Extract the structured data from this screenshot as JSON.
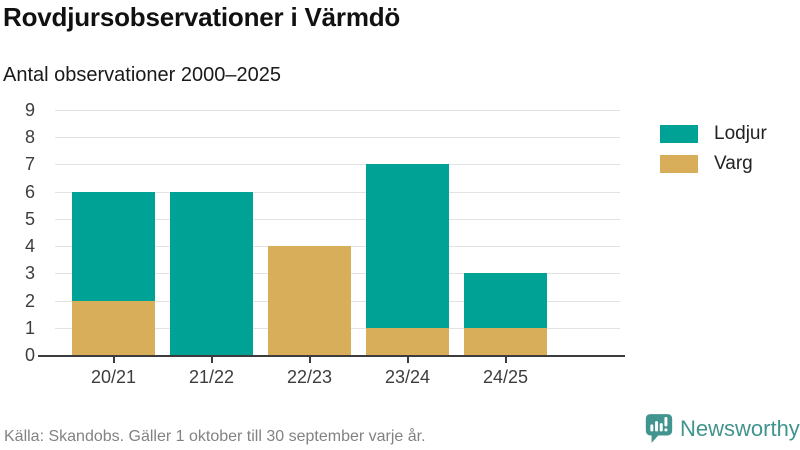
{
  "header": {
    "title": "Rovdjursobservationer i Värmdö",
    "subtitle": "Antal observationer 2000–2025"
  },
  "chart_data": {
    "type": "bar",
    "stacked": true,
    "title": "Rovdjursobservationer i Värmdö",
    "subtitle": "Antal observationer 2000–2025",
    "xlabel": "",
    "ylabel": "",
    "categories": [
      "20/21",
      "21/22",
      "22/23",
      "23/24",
      "24/25"
    ],
    "series": [
      {
        "name": "Lodjur",
        "color": "#00a295",
        "values": [
          4,
          6,
          0,
          6,
          2
        ]
      },
      {
        "name": "Varg",
        "color": "#d9ae5a",
        "values": [
          2,
          0,
          4,
          1,
          1
        ]
      }
    ],
    "stack_bottom_to_top": [
      "Varg",
      "Lodjur"
    ],
    "totals": [
      6,
      6,
      4,
      7,
      3
    ],
    "yticks": [
      0,
      1,
      2,
      3,
      4,
      5,
      6,
      7,
      8,
      9
    ],
    "ylim": [
      0,
      9
    ],
    "grid": true,
    "legend_position": "right"
  },
  "footer": {
    "source": "Källa: Skandobs. Gäller 1 oktober till 30 september varje år.",
    "brand": "Newsworthy"
  },
  "colors": {
    "lodjur": "#00a295",
    "varg": "#d9ae5a",
    "brand_teal": "#42948e",
    "axis": "#3c3c3c",
    "gridline": "#e3e3e3",
    "source_gray": "#828282"
  }
}
